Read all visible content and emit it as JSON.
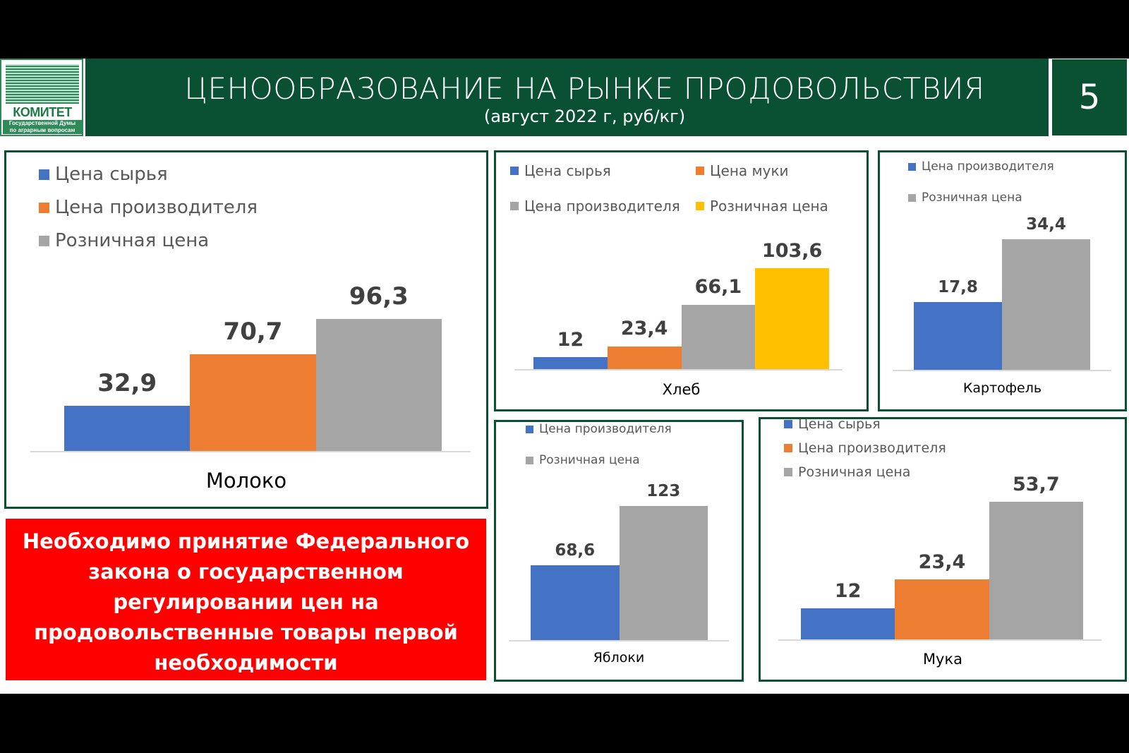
{
  "header": {
    "logo_title": "КОМИТЕТ",
    "logo_sub1": "Государственной Думы",
    "logo_sub2": "по аграрным вопросам",
    "title": "ЦЕНООБРАЗОВАНИЕ НА РЫНКЕ ПРОДОВОЛЬСТВИЯ",
    "subtitle": "(август 2022 г, руб/кг)",
    "slide_number": "5"
  },
  "callout": "Необходимо принятие Федерального закона о государственном регулировании цен на продовольственные товары первой необходимости",
  "colors": {
    "raw": "#4472c4",
    "flour": "#ed7d31",
    "producer": "#a5a5a5",
    "retail": "#ffc000",
    "green": "#0a5033",
    "red": "#ff0000"
  },
  "chart_data": [
    {
      "id": "milk",
      "type": "bar",
      "category": "Молоко",
      "series": [
        {
          "name": "Цена сырья",
          "value": 32.9,
          "label": "32,9",
          "color": "#4472c4"
        },
        {
          "name": "Цена производителя",
          "value": 70.7,
          "label": "70,7",
          "color": "#ed7d31"
        },
        {
          "name": "Розничная цена",
          "value": 96.3,
          "label": "96,3",
          "color": "#a5a5a5"
        }
      ]
    },
    {
      "id": "bread",
      "type": "bar",
      "category": "Хлеб",
      "series": [
        {
          "name": "Цена сырья",
          "value": 12,
          "label": "12",
          "color": "#4472c4"
        },
        {
          "name": "Цена муки",
          "value": 23.4,
          "label": "23,4",
          "color": "#ed7d31"
        },
        {
          "name": "Цена производителя",
          "value": 66.1,
          "label": "66,1",
          "color": "#a5a5a5"
        },
        {
          "name": "Розничная цена",
          "value": 103.6,
          "label": "103,6",
          "color": "#ffc000"
        }
      ]
    },
    {
      "id": "potato",
      "type": "bar",
      "category": "Картофель",
      "series": [
        {
          "name": "Цена производителя",
          "value": 17.8,
          "label": "17,8",
          "color": "#4472c4"
        },
        {
          "name": "Розничная цена",
          "value": 34.4,
          "label": "34,4",
          "color": "#a5a5a5"
        }
      ]
    },
    {
      "id": "apples",
      "type": "bar",
      "category": "Яблоки",
      "series": [
        {
          "name": "Цена производителя",
          "value": 68.6,
          "label": "68,6",
          "color": "#4472c4"
        },
        {
          "name": "Розничная цена",
          "value": 123,
          "label": "123",
          "color": "#a5a5a5"
        }
      ]
    },
    {
      "id": "flourc",
      "type": "bar",
      "category": "Мука",
      "series": [
        {
          "name": "Цена сырья",
          "value": 12,
          "label": "12",
          "color": "#4472c4"
        },
        {
          "name": "Цена производителя",
          "value": 23.4,
          "label": "23,4",
          "color": "#ed7d31"
        },
        {
          "name": "Розничная цена",
          "value": 53.7,
          "label": "53,7",
          "color": "#a5a5a5"
        }
      ]
    }
  ]
}
